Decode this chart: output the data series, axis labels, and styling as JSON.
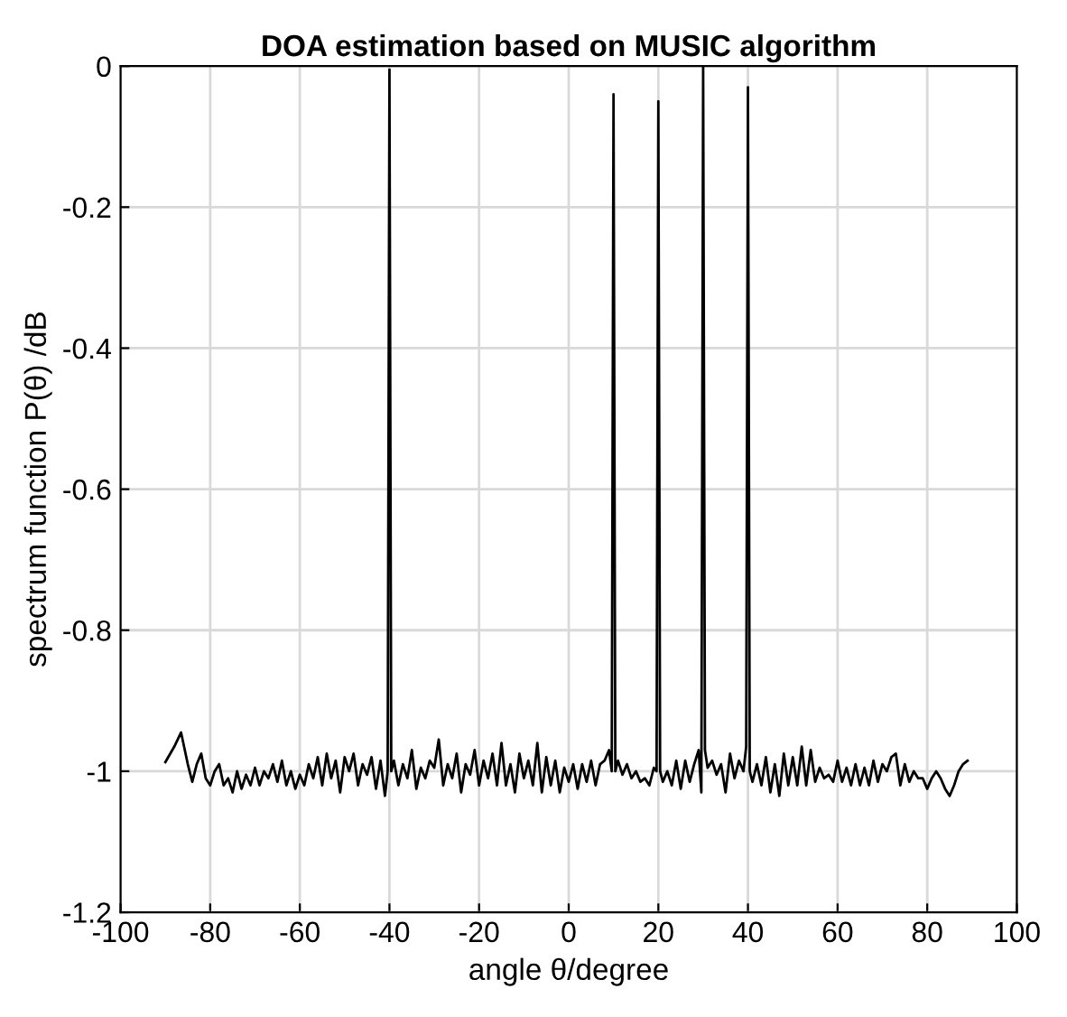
{
  "chart_data": {
    "type": "line",
    "title": "DOA estimation based on MUSIC algorithm",
    "xlabel": "angle θ/degree",
    "ylabel": "spectrum function P(θ) /dB",
    "xlim": [
      -100,
      100
    ],
    "ylim": [
      -1.2,
      0
    ],
    "xticks": [
      -100,
      -80,
      -60,
      -40,
      -20,
      0,
      20,
      40,
      60,
      80,
      100
    ],
    "yticks": [
      -1.2,
      -1,
      -0.8,
      -0.6,
      -0.4,
      -0.2,
      0
    ],
    "grid": true,
    "series": [
      {
        "color": "#000000",
        "x": [
          -90,
          -88,
          -86.5,
          -85,
          -84,
          -83,
          -82,
          -81,
          -80,
          -79,
          -78,
          -77,
          -76,
          -75,
          -74,
          -73,
          -72,
          -71,
          -70,
          -69,
          -68,
          -67,
          -66,
          -65,
          -64,
          -63,
          -62,
          -61,
          -60,
          -59,
          -58,
          -57,
          -56,
          -55,
          -54,
          -53,
          -52,
          -51,
          -50,
          -49,
          -48,
          -47,
          -46,
          -45,
          -44,
          -43,
          -42,
          -41,
          -40.4,
          -40,
          -39.6,
          -39,
          -38,
          -37,
          -36,
          -35,
          -34,
          -33,
          -32,
          -31,
          -30,
          -29,
          -28,
          -27,
          -26,
          -25,
          -24,
          -23,
          -22,
          -21,
          -20,
          -19,
          -18,
          -17,
          -16,
          -15,
          -14,
          -13,
          -12,
          -11,
          -10,
          -9,
          -8,
          -7,
          -6,
          -5,
          -4,
          -3,
          -2,
          -1,
          0,
          1,
          2,
          3,
          4,
          5,
          6,
          7,
          8,
          9,
          9.6,
          10,
          10.4,
          11,
          12,
          13,
          14,
          15,
          16,
          17,
          18,
          19,
          19.6,
          20,
          20.4,
          21,
          22,
          23,
          24,
          25,
          26,
          27,
          28,
          29,
          29.6,
          30,
          30.4,
          31,
          32,
          33,
          34,
          35,
          36,
          37,
          38,
          39,
          39.6,
          40,
          40.4,
          41,
          42,
          43,
          44,
          45,
          46,
          47,
          48,
          49,
          50,
          51,
          52,
          53,
          54,
          55,
          56,
          57,
          58,
          59,
          60,
          61,
          62,
          63,
          64,
          65,
          66,
          67,
          68,
          69,
          70,
          71,
          72,
          73,
          74,
          75,
          76,
          77,
          78,
          79,
          80,
          81,
          82,
          83,
          84,
          85,
          86,
          87,
          88,
          89
        ],
        "values": [
          -0.987,
          -0.965,
          -0.945,
          -0.99,
          -1.015,
          -0.99,
          -0.975,
          -1.01,
          -1.02,
          -1.0,
          -0.99,
          -1.02,
          -1.01,
          -1.03,
          -1.0,
          -1.025,
          -1.005,
          -1.02,
          -0.995,
          -1.02,
          -1.0,
          -1.01,
          -0.99,
          -1.015,
          -0.985,
          -1.02,
          -1.0,
          -1.025,
          -1.005,
          -1.02,
          -0.99,
          -1.01,
          -0.98,
          -1.02,
          -0.975,
          -1.01,
          -0.985,
          -1.03,
          -0.98,
          -1.0,
          -0.975,
          -1.02,
          -0.99,
          -1.005,
          -0.98,
          -1.025,
          -0.985,
          -1.035,
          -1.0,
          -0.005,
          -1.0,
          -0.985,
          -1.02,
          -0.99,
          -1.01,
          -0.97,
          -1.025,
          -0.995,
          -1.01,
          -0.985,
          -0.995,
          -0.955,
          -1.02,
          -0.99,
          -1.01,
          -0.975,
          -1.03,
          -0.99,
          -1.005,
          -0.97,
          -1.02,
          -0.985,
          -1.01,
          -0.975,
          -1.02,
          -0.96,
          -1.02,
          -0.99,
          -1.03,
          -0.975,
          -1.01,
          -0.985,
          -1.02,
          -0.96,
          -1.03,
          -0.98,
          -1.02,
          -0.985,
          -1.03,
          -0.995,
          -1.015,
          -0.99,
          -1.025,
          -0.99,
          -1.015,
          -0.985,
          -1.02,
          -0.99,
          -0.985,
          -0.97,
          -1.0,
          -0.04,
          -1.0,
          -0.985,
          -1.005,
          -0.99,
          -1.01,
          -1.0,
          -1.015,
          -1.01,
          -1.02,
          -0.995,
          -1.0,
          -0.05,
          -1.0,
          -1.015,
          -1.0,
          -1.02,
          -0.985,
          -1.025,
          -0.985,
          -1.015,
          -0.99,
          -0.97,
          -1.03,
          0,
          -0.97,
          -0.995,
          -0.985,
          -1.005,
          -0.99,
          -1.03,
          -0.975,
          -1.01,
          -0.985,
          -1.0,
          -0.965,
          -0.03,
          -1.0,
          -1.015,
          -0.99,
          -1.02,
          -0.98,
          -1.03,
          -0.99,
          -1.035,
          -0.975,
          -1.02,
          -0.98,
          -1.02,
          -0.965,
          -1.02,
          -0.97,
          -1.015,
          -0.995,
          -1.01,
          -1.005,
          -1.015,
          -0.985,
          -1.015,
          -0.995,
          -1.02,
          -0.99,
          -1.02,
          -0.995,
          -1.02,
          -0.985,
          -1.015,
          -0.99,
          -1.0,
          -0.98,
          -0.975,
          -1.02,
          -0.99,
          -1.015,
          -1.0,
          -1.01,
          -1.01,
          -1.025,
          -1.01,
          -1.0,
          -1.01,
          -1.025,
          -1.035,
          -1.02,
          -1.0,
          -0.99,
          -0.985
        ]
      }
    ]
  }
}
